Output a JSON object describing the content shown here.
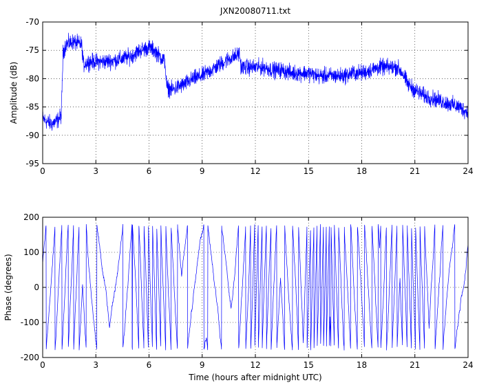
{
  "chart_data": [
    {
      "type": "line",
      "title": "JXN20080711.txt",
      "xlabel": "",
      "ylabel": "Amplitude (dB)",
      "xlim": [
        0,
        24
      ],
      "ylim": [
        -95,
        -70
      ],
      "xticks": [
        0,
        3,
        6,
        9,
        12,
        15,
        18,
        21,
        24
      ],
      "yticks": [
        -95,
        -90,
        -85,
        -80,
        -75,
        -70
      ],
      "grid": true,
      "line_color": "#0000ff",
      "noise_db": 1.2,
      "series": [
        {
          "x": [
            0,
            0.2,
            0.5,
            0.8,
            1.05,
            1.15,
            1.3,
            1.7,
            2.2,
            2.3,
            2.6,
            3.0,
            3.5,
            4.0,
            4.5,
            5.0,
            5.5,
            6.0,
            6.3,
            6.6,
            6.9,
            7.0,
            7.3,
            7.6,
            8.0,
            8.5,
            9.0,
            9.5,
            10.0,
            10.5,
            10.9,
            11.1,
            11.2,
            11.6,
            12.0,
            12.5,
            13.0,
            13.5,
            14.0,
            14.5,
            15.0,
            15.5,
            16.0,
            16.5,
            17.0,
            17.5,
            18.0,
            18.5,
            19.0,
            19.5,
            20.0,
            20.3,
            20.6,
            21.0,
            21.5,
            22.0,
            22.5,
            23.0,
            23.5,
            24.0
          ],
          "y": [
            -87.0,
            -87.5,
            -88.0,
            -87.5,
            -86.5,
            -75.5,
            -74.0,
            -73.5,
            -74.0,
            -77.5,
            -77.0,
            -77.0,
            -77.0,
            -76.8,
            -76.5,
            -76.0,
            -75.0,
            -74.5,
            -75.0,
            -76.0,
            -77.0,
            -81.5,
            -82.0,
            -81.5,
            -81.0,
            -80.0,
            -79.5,
            -78.5,
            -77.5,
            -76.5,
            -76.0,
            -75.5,
            -78.0,
            -78.0,
            -78.0,
            -78.0,
            -78.5,
            -78.5,
            -79.0,
            -79.0,
            -79.0,
            -79.5,
            -79.5,
            -79.5,
            -79.5,
            -79.0,
            -79.0,
            -78.5,
            -78.0,
            -78.0,
            -78.0,
            -79.0,
            -81.0,
            -82.0,
            -83.0,
            -83.5,
            -84.0,
            -84.5,
            -85.0,
            -86.0
          ]
        }
      ]
    },
    {
      "type": "line",
      "title": "",
      "xlabel": "Time (hours after midnight UTC)",
      "ylabel": "Phase (degrees)",
      "xlim": [
        0,
        24
      ],
      "ylim": [
        -200,
        200
      ],
      "xticks": [
        0,
        3,
        6,
        9,
        12,
        15,
        18,
        21,
        24
      ],
      "yticks": [
        -200,
        -100,
        0,
        100,
        200
      ],
      "grid": true,
      "line_color": "#0000ff",
      "wrap_degrees": 180,
      "series": [
        {
          "x": [
            0,
            1,
            2,
            3,
            4,
            5,
            6,
            7,
            8,
            9,
            10,
            11,
            12,
            13,
            14,
            15,
            16,
            17,
            18,
            19,
            20,
            21,
            22,
            23,
            24
          ],
          "rate_deg_per_hour": [
            500,
            900,
            1200,
            450,
            350,
            800,
            1600,
            1300,
            500,
            300,
            450,
            600,
            1800,
            1200,
            700,
            1800,
            2200,
            1000,
            900,
            1000,
            1300,
            1600,
            900,
            500,
            400
          ]
        }
      ]
    }
  ]
}
